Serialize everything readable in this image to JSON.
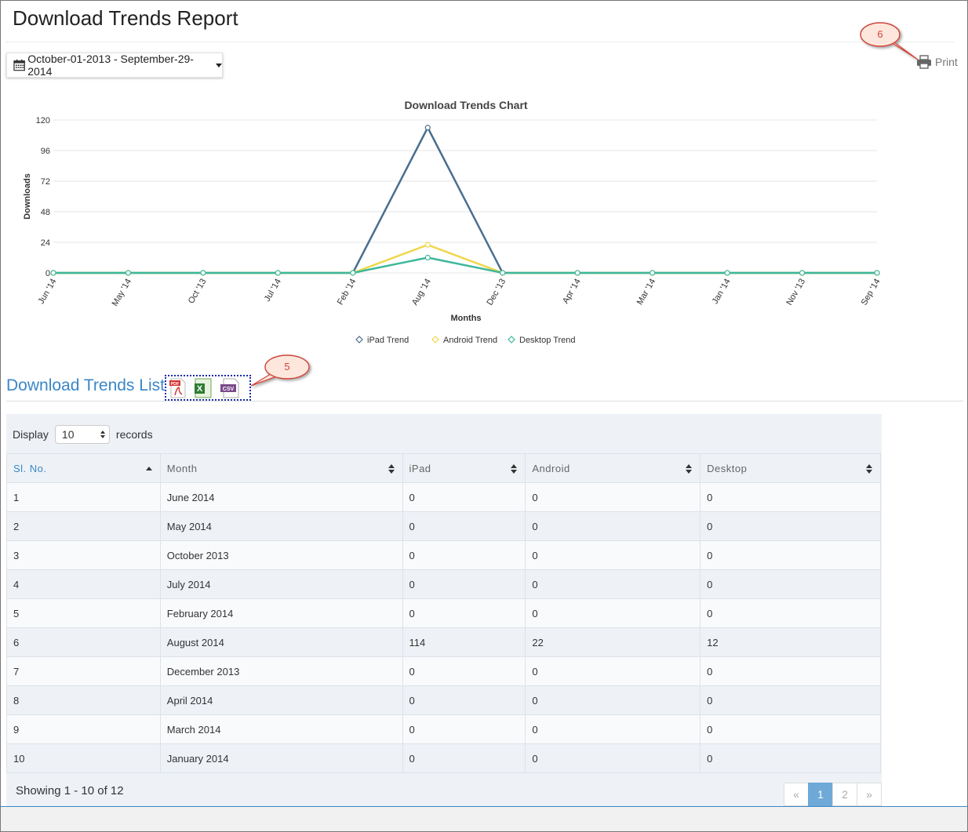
{
  "page": {
    "title": "Download Trends Report"
  },
  "date_range": {
    "label": "October-01-2013 - September-29-2014",
    "icon": "calendar-icon"
  },
  "print": {
    "label": "Print",
    "icon": "printer-icon"
  },
  "callouts": {
    "print": "6",
    "export": "5"
  },
  "chart_data": {
    "type": "line",
    "title": "Download Trends Chart",
    "xlabel": "Months",
    "ylabel": "Downloads",
    "ylim": [
      0,
      120
    ],
    "yticks": [
      0,
      24,
      48,
      72,
      96,
      120
    ],
    "categories": [
      "Jun '14",
      "May '14",
      "Oct '13",
      "Jul '14",
      "Feb '14",
      "Aug '14",
      "Dec '13",
      "Apr '14",
      "Mar '14",
      "Jan '14",
      "Nov '13",
      "Sep '14"
    ],
    "series": [
      {
        "name": "iPad Trend",
        "color": "#4a6f8f",
        "values": [
          0,
          0,
          0,
          0,
          0,
          114,
          0,
          0,
          0,
          0,
          0,
          0
        ]
      },
      {
        "name": "Android Trend",
        "color": "#f0d64a",
        "values": [
          0,
          0,
          0,
          0,
          0,
          22,
          0,
          0,
          0,
          0,
          0,
          0
        ]
      },
      {
        "name": "Desktop Trend",
        "color": "#3db89a",
        "values": [
          0,
          0,
          0,
          0,
          0,
          12,
          0,
          0,
          0,
          0,
          0,
          0
        ]
      }
    ]
  },
  "list": {
    "title": "Download Trends List",
    "exports": [
      {
        "label": "PDF",
        "icon": "pdf-icon"
      },
      {
        "label": "X",
        "icon": "excel-icon"
      },
      {
        "label": "CSV",
        "icon": "csv-icon"
      }
    ],
    "display_label": "Display",
    "page_size": "10",
    "records_label": "records",
    "columns": [
      "Sl. No.",
      "Month",
      "iPad",
      "Android",
      "Desktop"
    ],
    "rows": [
      [
        "1",
        "June 2014",
        "0",
        "0",
        "0"
      ],
      [
        "2",
        "May 2014",
        "0",
        "0",
        "0"
      ],
      [
        "3",
        "October 2013",
        "0",
        "0",
        "0"
      ],
      [
        "4",
        "July 2014",
        "0",
        "0",
        "0"
      ],
      [
        "5",
        "February 2014",
        "0",
        "0",
        "0"
      ],
      [
        "6",
        "August 2014",
        "114",
        "22",
        "12"
      ],
      [
        "7",
        "December 2013",
        "0",
        "0",
        "0"
      ],
      [
        "8",
        "April 2014",
        "0",
        "0",
        "0"
      ],
      [
        "9",
        "March 2014",
        "0",
        "0",
        "0"
      ],
      [
        "10",
        "January 2014",
        "0",
        "0",
        "0"
      ]
    ],
    "summary": "Showing 1 - 10 of 12",
    "pager": {
      "prev": "«",
      "pages": [
        "1",
        "2"
      ],
      "active": "1",
      "next": "»"
    }
  }
}
